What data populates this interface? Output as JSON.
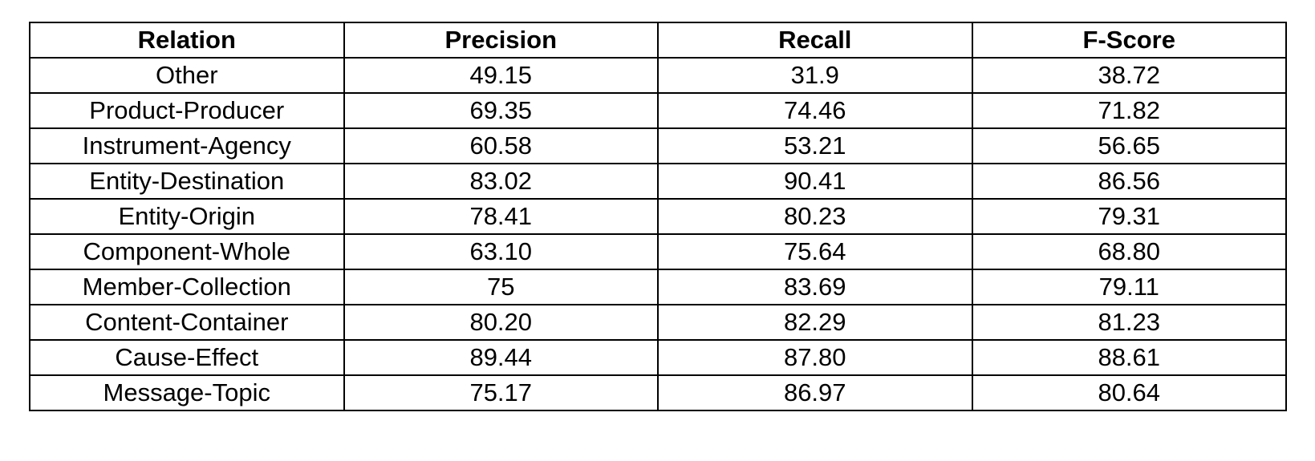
{
  "table": {
    "headers": [
      "Relation",
      "Precision",
      "Recall",
      "F-Score"
    ],
    "rows": [
      [
        "Other",
        "49.15",
        "31.9",
        "38.72"
      ],
      [
        "Product-Producer",
        "69.35",
        "74.46",
        "71.82"
      ],
      [
        "Instrument-Agency",
        "60.58",
        "53.21",
        "56.65"
      ],
      [
        "Entity-Destination",
        "83.02",
        "90.41",
        "86.56"
      ],
      [
        "Entity-Origin",
        "78.41",
        "80.23",
        "79.31"
      ],
      [
        "Component-Whole",
        "63.10",
        "75.64",
        "68.80"
      ],
      [
        "Member-Collection",
        "75",
        "83.69",
        "79.11"
      ],
      [
        "Content-Container",
        "80.20",
        "82.29",
        "81.23"
      ],
      [
        "Cause-Effect",
        "89.44",
        "87.80",
        "88.61"
      ],
      [
        "Message-Topic",
        "75.17",
        "86.97",
        "80.64"
      ]
    ]
  }
}
